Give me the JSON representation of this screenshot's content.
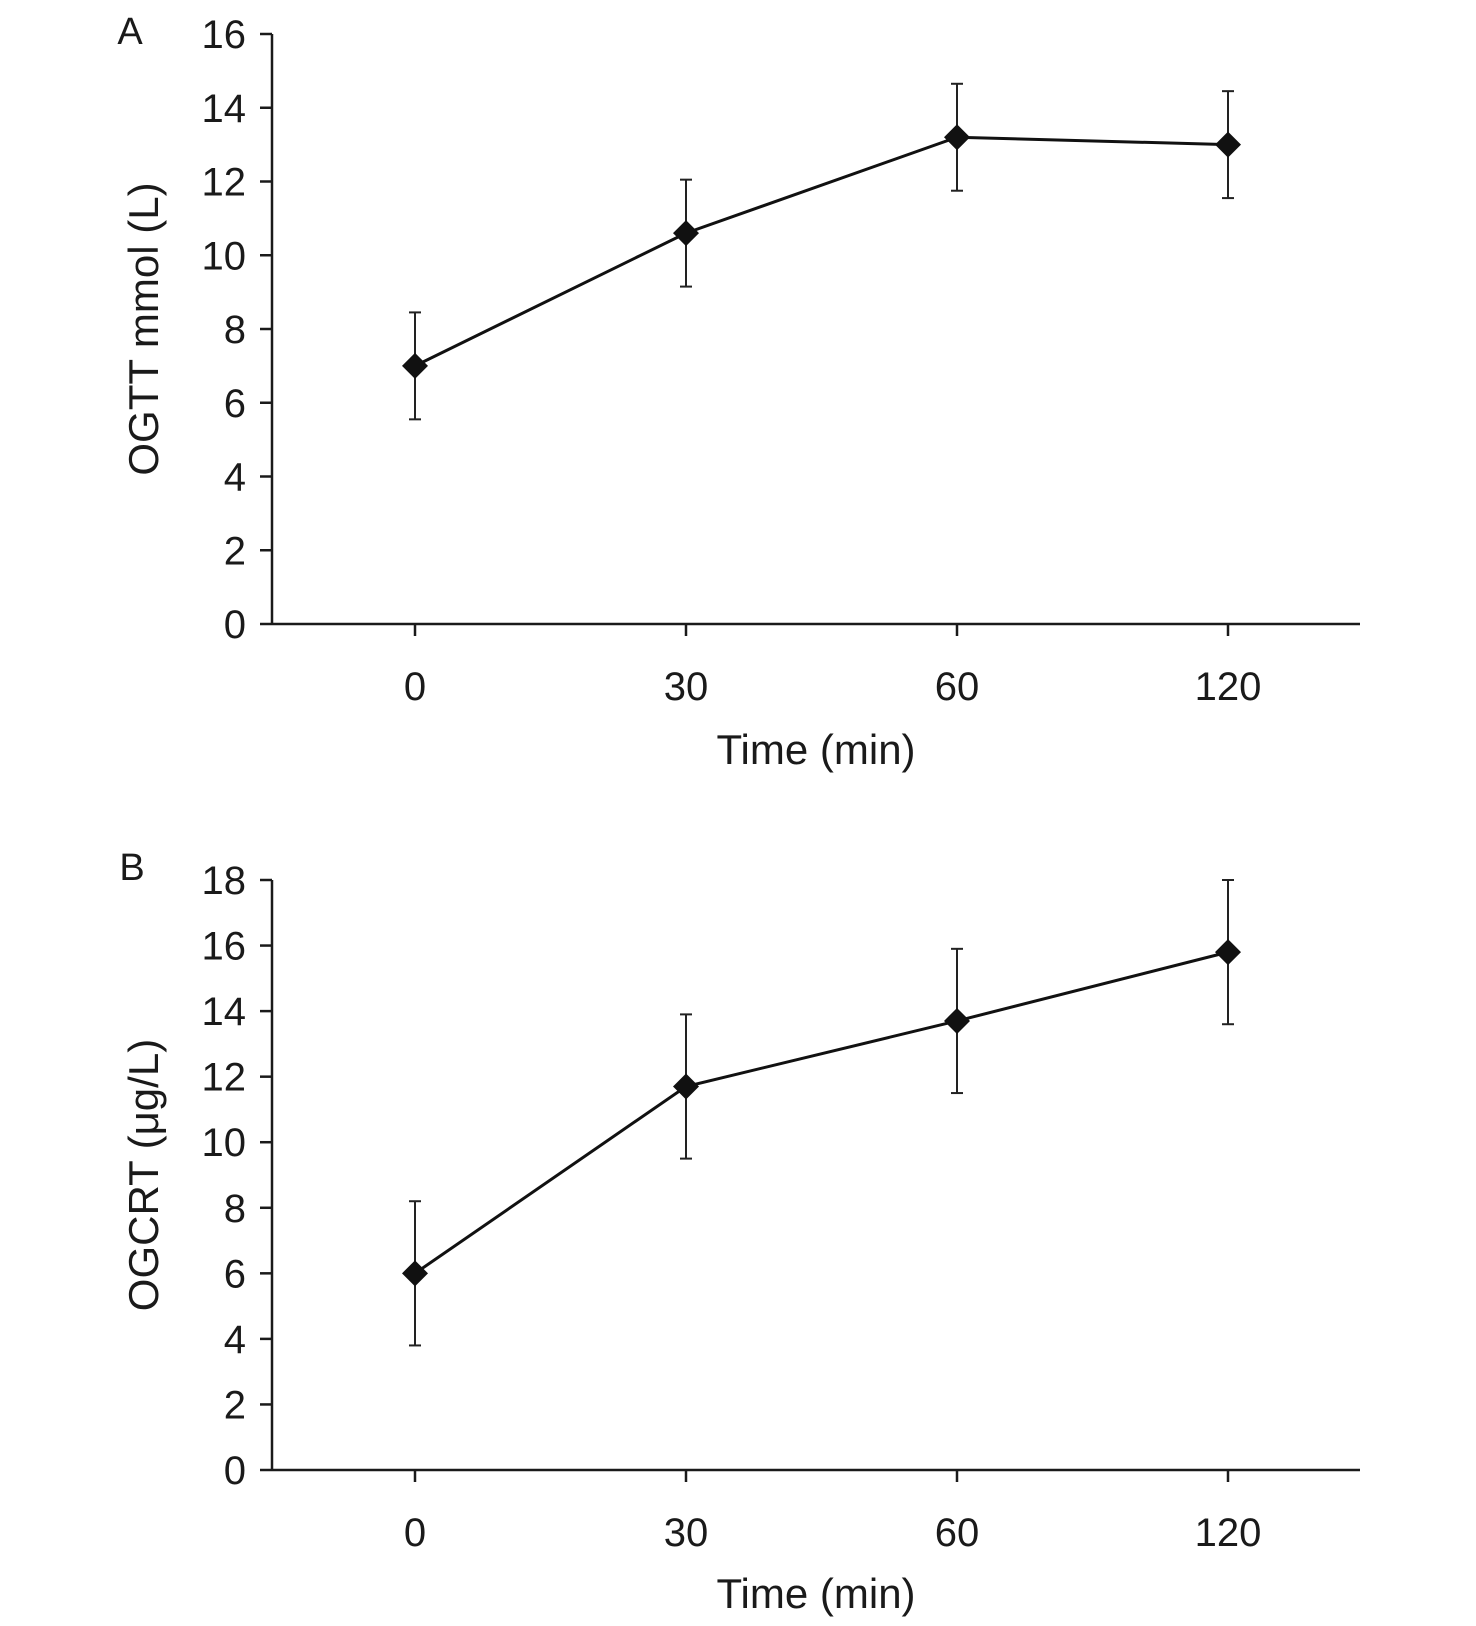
{
  "chart_data": [
    {
      "panel": "A",
      "type": "line",
      "categories": [
        "0",
        "30",
        "60",
        "120"
      ],
      "values": [
        7.0,
        10.6,
        13.2,
        13.0
      ],
      "error": [
        1.45,
        1.45,
        1.45,
        1.45
      ],
      "xlabel": "Time (min)",
      "ylabel": "OGTT mmol (L)",
      "ylim": [
        0,
        16
      ],
      "yticks": [
        "0",
        "2",
        "4",
        "6",
        "8",
        "10",
        "12",
        "14",
        "16"
      ],
      "marker": "diamond",
      "grid": false,
      "legend": "none"
    },
    {
      "panel": "B",
      "type": "line",
      "categories": [
        "0",
        "30",
        "60",
        "120"
      ],
      "values": [
        6.0,
        11.7,
        13.7,
        15.8
      ],
      "error": [
        2.2,
        2.2,
        2.2,
        2.2
      ],
      "xlabel": "Time (min)",
      "ylabel": "OGCRT (μg/L)",
      "ylim": [
        0,
        18
      ],
      "yticks": [
        "0",
        "2",
        "4",
        "6",
        "8",
        "10",
        "12",
        "14",
        "16",
        "18"
      ],
      "marker": "diamond",
      "grid": false,
      "legend": "none"
    }
  ]
}
